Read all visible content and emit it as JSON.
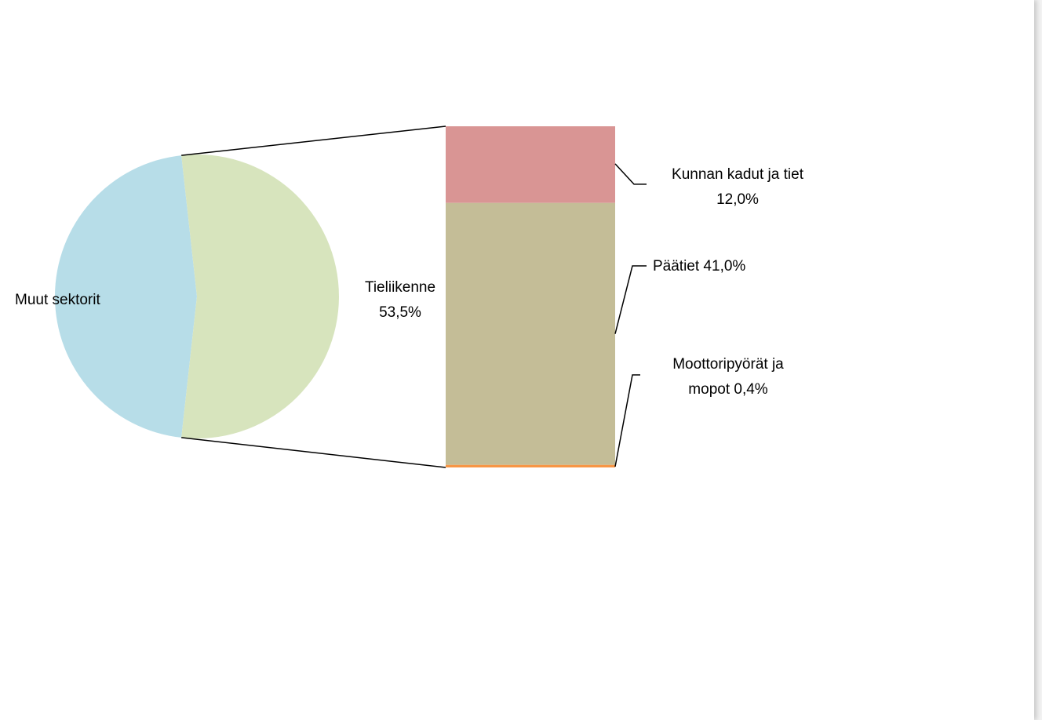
{
  "chart_data": {
    "type": "pie",
    "subtype": "bar-of-pie",
    "pie": {
      "slices": [
        {
          "name": "Muut sektorit",
          "value": 46.5,
          "color": "#b7dde8",
          "label": "Muut sektorit"
        },
        {
          "name": "Tieliikenne",
          "value": 53.5,
          "color": "#d7e4bd",
          "label_line1": "Tieliikenne",
          "label_line2": "53,5%"
        }
      ]
    },
    "bar": {
      "segments": [
        {
          "name": "Kunnan kadut ja tiet",
          "value": 12.0,
          "color": "#d99594",
          "label_line1": "Kunnan kadut ja tiet",
          "label_line2": "12,0%"
        },
        {
          "name": "Päätiet",
          "value": 41.0,
          "color": "#c4bd97",
          "label_line1": "Päätiet 41,0%"
        },
        {
          "name": "Moottoripyörät ja mopot",
          "value": 0.4,
          "color": "#f79646",
          "label_line1": "Moottoripyörät ja",
          "label_line2": "mopot 0,4%"
        }
      ]
    },
    "legend": "none",
    "grid": false
  }
}
